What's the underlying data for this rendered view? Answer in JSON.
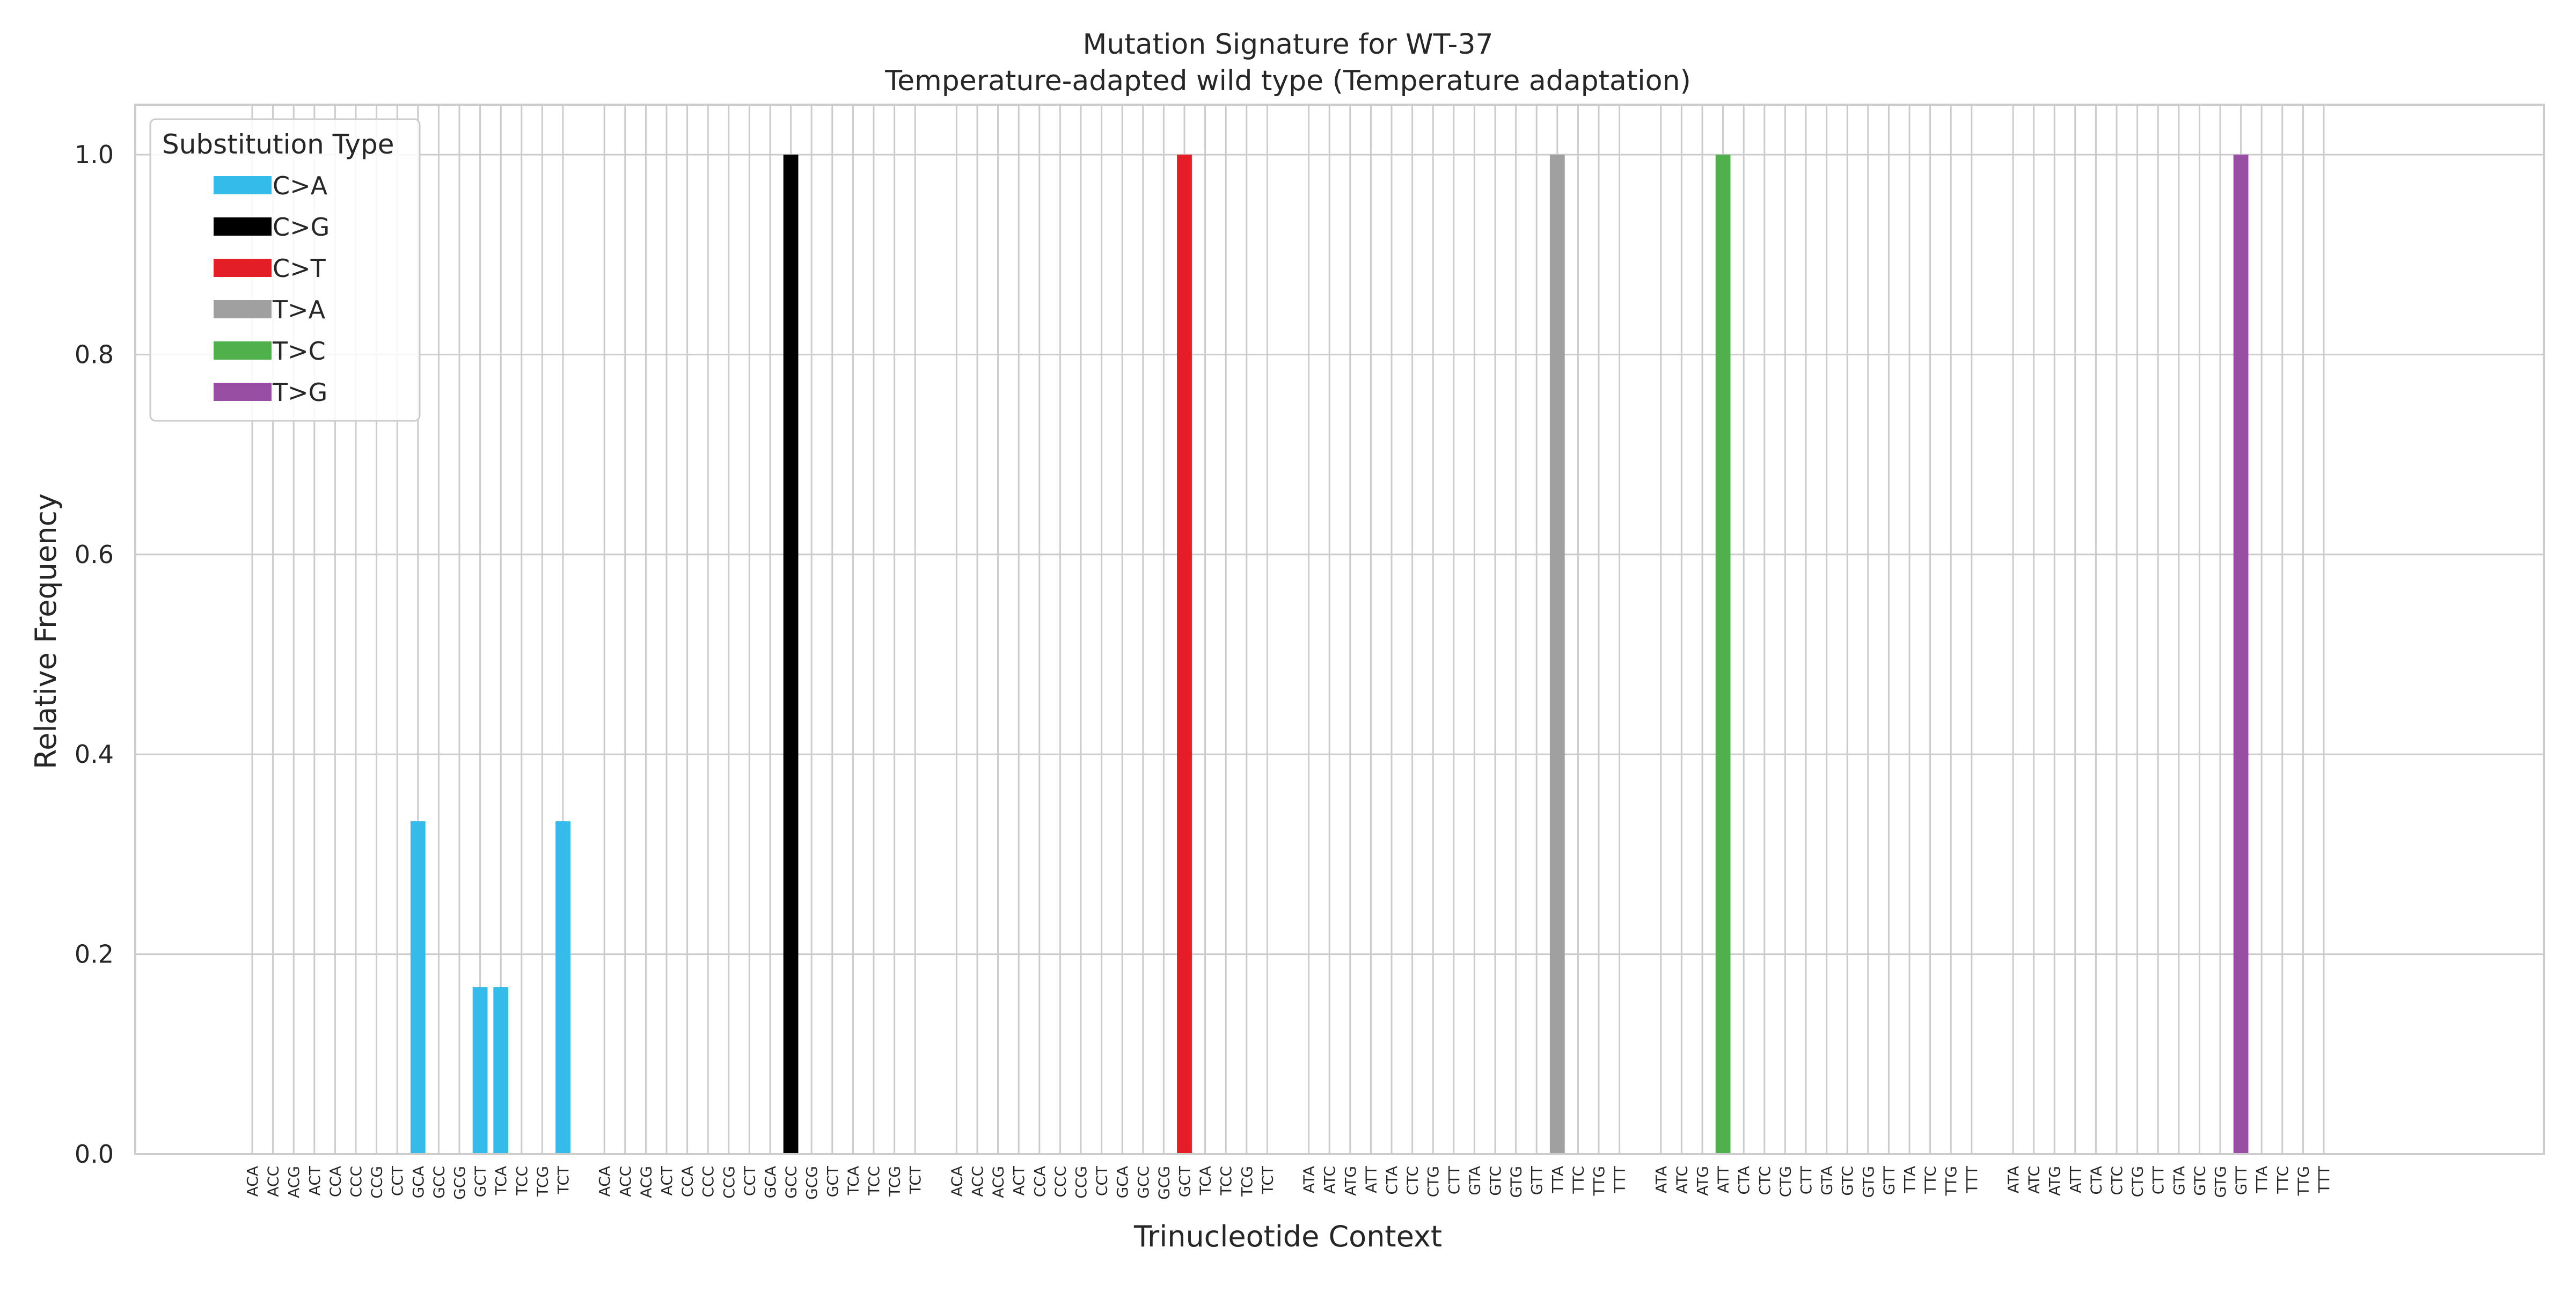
{
  "chart_data": {
    "type": "bar",
    "title": "Mutation Signature for WT-37",
    "subtitle": "Temperature-adapted wild type (Temperature adaptation)",
    "xlabel": "Trinucleotide Context",
    "ylabel": "Relative Frequency",
    "ylim": [
      0,
      1.05
    ],
    "yticks": [
      0.0,
      0.2,
      0.4,
      0.6,
      0.8,
      1.0
    ],
    "grid": true,
    "legend": {
      "title": "Substitution Type",
      "placement": "top-left",
      "entries": [
        {
          "name": "C>A",
          "color": "#35BBEA"
        },
        {
          "name": "C>G",
          "color": "#000000"
        },
        {
          "name": "C>T",
          "color": "#E41E26"
        },
        {
          "name": "T>A",
          "color": "#A0A0A0"
        },
        {
          "name": "T>C",
          "color": "#50B14C"
        },
        {
          "name": "T>G",
          "color": "#984EA3"
        }
      ]
    },
    "groups": [
      {
        "substitution": "C>A",
        "color": "#35BBEA",
        "contexts": [
          "ACA",
          "ACC",
          "ACG",
          "ACT",
          "CCA",
          "CCC",
          "CCG",
          "CCT",
          "GCA",
          "GCC",
          "GCG",
          "GCT",
          "TCA",
          "TCC",
          "TCG",
          "TCT"
        ],
        "values": [
          0,
          0,
          0,
          0,
          0,
          0,
          0,
          0,
          0.333,
          0,
          0,
          0.167,
          0.167,
          0,
          0,
          0.333
        ]
      },
      {
        "substitution": "C>G",
        "color": "#000000",
        "contexts": [
          "ACA",
          "ACC",
          "ACG",
          "ACT",
          "CCA",
          "CCC",
          "CCG",
          "CCT",
          "GCA",
          "GCC",
          "GCG",
          "GCT",
          "TCA",
          "TCC",
          "TCG",
          "TCT"
        ],
        "values": [
          0,
          0,
          0,
          0,
          0,
          0,
          0,
          0,
          0,
          1.0,
          0,
          0,
          0,
          0,
          0,
          0
        ]
      },
      {
        "substitution": "C>T",
        "color": "#E41E26",
        "contexts": [
          "ACA",
          "ACC",
          "ACG",
          "ACT",
          "CCA",
          "CCC",
          "CCG",
          "CCT",
          "GCA",
          "GCC",
          "GCG",
          "GCT",
          "TCA",
          "TCC",
          "TCG",
          "TCT"
        ],
        "values": [
          0,
          0,
          0,
          0,
          0,
          0,
          0,
          0,
          0,
          0,
          0,
          1.0,
          0,
          0,
          0,
          0
        ]
      },
      {
        "substitution": "T>A",
        "color": "#A0A0A0",
        "contexts": [
          "ATA",
          "ATC",
          "ATG",
          "ATT",
          "CTA",
          "CTC",
          "CTG",
          "CTT",
          "GTA",
          "GTC",
          "GTG",
          "GTT",
          "TTA",
          "TTC",
          "TTG",
          "TTT"
        ],
        "values": [
          0,
          0,
          0,
          0,
          0,
          0,
          0,
          0,
          0,
          0,
          0,
          0,
          1.0,
          0,
          0,
          0
        ]
      },
      {
        "substitution": "T>C",
        "color": "#50B14C",
        "contexts": [
          "ATA",
          "ATC",
          "ATG",
          "ATT",
          "CTA",
          "CTC",
          "CTG",
          "CTT",
          "GTA",
          "GTC",
          "GTG",
          "GTT",
          "TTA",
          "TTC",
          "TTG",
          "TTT"
        ],
        "values": [
          0,
          0,
          0,
          1.0,
          0,
          0,
          0,
          0,
          0,
          0,
          0,
          0,
          0,
          0,
          0,
          0
        ]
      },
      {
        "substitution": "T>G",
        "color": "#984EA3",
        "contexts": [
          "ATA",
          "ATC",
          "ATG",
          "ATT",
          "CTA",
          "CTC",
          "CTG",
          "CTT",
          "GTA",
          "GTC",
          "GTG",
          "GTT",
          "TTA",
          "TTC",
          "TTG",
          "TTT"
        ],
        "values": [
          0,
          0,
          0,
          0,
          0,
          0,
          0,
          0,
          0,
          0,
          0,
          1.0,
          0,
          0,
          0,
          0
        ]
      }
    ]
  }
}
